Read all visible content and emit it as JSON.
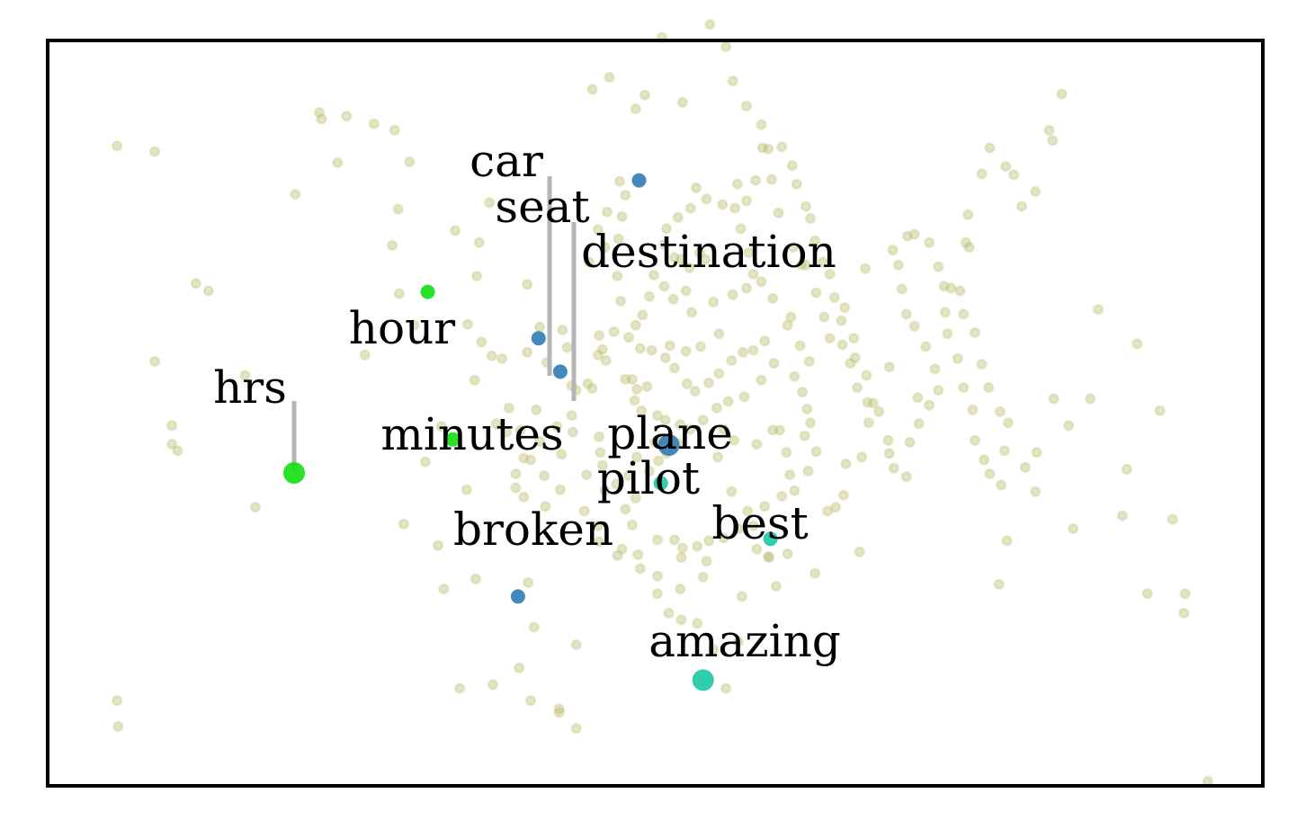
{
  "chart_data": {
    "type": "scatter",
    "title": "",
    "xlabel": "",
    "ylabel": "",
    "xlim": [
      0,
      100
    ],
    "ylim": [
      0,
      100
    ],
    "grid": false,
    "legend": "none",
    "axes_ticks": false,
    "colors": {
      "background_points": "#b9b866",
      "travel": "#2f7cb4",
      "time": "#12e012",
      "sentiment": "#19c9a4",
      "frame": "#000000",
      "leader_line": "#b5b5b5"
    },
    "background_points": [
      [
        4.5,
        70.6
      ],
      [
        4.6,
        8.1
      ],
      [
        7.8,
        70.0
      ],
      [
        7.8,
        47.4
      ],
      [
        9.3,
        40.5
      ],
      [
        9.3,
        38.5
      ],
      [
        9.8,
        37.8
      ],
      [
        11.4,
        55.8
      ],
      [
        12.5,
        55.0
      ],
      [
        15.7,
        45.9
      ],
      [
        16.6,
        31.7
      ],
      [
        20.1,
        65.4
      ],
      [
        22.2,
        74.2
      ],
      [
        22.4,
        73.5
      ],
      [
        24.6,
        73.8
      ],
      [
        23.8,
        68.8
      ],
      [
        26.2,
        48.1
      ],
      [
        30.5,
        51.3
      ],
      [
        27.0,
        73.0
      ],
      [
        28.8,
        72.3
      ],
      [
        30.1,
        68.9
      ],
      [
        29.1,
        63.8
      ],
      [
        28.6,
        59.9
      ],
      [
        29.2,
        54.7
      ],
      [
        33.1,
        22.9
      ],
      [
        32.6,
        27.6
      ],
      [
        35.9,
        24.0
      ],
      [
        34.1,
        61.5
      ],
      [
        31.5,
        36.6
      ],
      [
        32.9,
        40.4
      ],
      [
        35.2,
        51.4
      ],
      [
        36.0,
        56.6
      ],
      [
        36.2,
        60.2
      ],
      [
        37.1,
        64.5
      ],
      [
        36.4,
        49.5
      ],
      [
        35.8,
        45.4
      ],
      [
        37.7,
        40.7
      ],
      [
        38.6,
        39.8
      ],
      [
        38.2,
        47.7
      ],
      [
        39.8,
        40.0
      ],
      [
        40.4,
        48.4
      ],
      [
        41.5,
        51.1
      ],
      [
        40.4,
        55.7
      ],
      [
        40.7,
        36.8
      ],
      [
        39.4,
        33.8
      ],
      [
        40.5,
        23.6
      ],
      [
        41.0,
        18.8
      ],
      [
        39.7,
        14.4
      ],
      [
        40.7,
        10.9
      ],
      [
        43.2,
        9.6
      ],
      [
        43.2,
        10.0
      ],
      [
        44.7,
        7.9
      ],
      [
        44.7,
        16.9
      ],
      [
        40.1,
        32.8
      ],
      [
        39.4,
        35.3
      ],
      [
        41.5,
        38.8
      ],
      [
        40.1,
        37.0
      ],
      [
        41.9,
        35.1
      ],
      [
        43.4,
        37.4
      ],
      [
        43.0,
        40.4
      ],
      [
        41.2,
        42.2
      ],
      [
        42.1,
        47.3
      ],
      [
        43.9,
        48.9
      ],
      [
        44.3,
        41.6
      ],
      [
        44.4,
        39.8
      ],
      [
        43.3,
        33.6
      ],
      [
        42.0,
        31.8
      ],
      [
        45.4,
        31.3
      ],
      [
        46.8,
        37.6
      ],
      [
        46.7,
        39.3
      ],
      [
        46.1,
        44.5
      ],
      [
        45.7,
        45.0
      ],
      [
        47.3,
        47.5
      ],
      [
        46.6,
        48.1
      ],
      [
        47.0,
        48.7
      ],
      [
        48.0,
        50.6
      ],
      [
        46.7,
        50.2
      ],
      [
        48.6,
        53.9
      ],
      [
        48.3,
        56.6
      ],
      [
        47.2,
        59.7
      ],
      [
        48.4,
        60.6
      ],
      [
        48.7,
        63.0
      ],
      [
        49.0,
        65.3
      ],
      [
        48.5,
        66.8
      ],
      [
        47.4,
        63.5
      ],
      [
        46.6,
        61.6
      ],
      [
        45.8,
        58.1
      ],
      [
        43.5,
        50.8
      ],
      [
        44.7,
        44.3
      ],
      [
        49.0,
        45.5
      ],
      [
        49.6,
        45.5
      ],
      [
        50.9,
        44.7
      ],
      [
        50.0,
        44.4
      ],
      [
        49.8,
        43.2
      ],
      [
        50.4,
        42.1
      ],
      [
        51.8,
        41.6
      ],
      [
        52.5,
        41.1
      ],
      [
        53.8,
        40.6
      ],
      [
        52.3,
        39.1
      ],
      [
        51.6,
        38.7
      ],
      [
        50.0,
        37.1
      ],
      [
        49.3,
        35.1
      ],
      [
        48.2,
        34.2
      ],
      [
        47.2,
        33.5
      ],
      [
        46.7,
        28.0
      ],
      [
        46.6,
        29.7
      ],
      [
        49.6,
        29.8
      ],
      [
        51.8,
        28.2
      ],
      [
        53.3,
        28.2
      ],
      [
        53.9,
        26.3
      ],
      [
        54.0,
        27.3
      ],
      [
        55.3,
        27.5
      ],
      [
        56.1,
        25.9
      ],
      [
        55.8,
        24.2
      ],
      [
        53.8,
        22.9
      ],
      [
        51.8,
        22.4
      ],
      [
        52.8,
        20.3
      ],
      [
        53.9,
        19.6
      ],
      [
        55.3,
        19.2
      ],
      [
        56.7,
        16.4
      ],
      [
        57.8,
        12.2
      ],
      [
        58.9,
        17.2
      ],
      [
        59.2,
        22.1
      ],
      [
        60.5,
        27.2
      ],
      [
        61.2,
        31.8
      ],
      [
        59.7,
        31.3
      ],
      [
        58.3,
        33.4
      ],
      [
        57.1,
        37.1
      ],
      [
        58.5,
        38.9
      ],
      [
        60.5,
        38.5
      ],
      [
        61.9,
        40.0
      ],
      [
        62.5,
        40.0
      ],
      [
        63.1,
        37.6
      ],
      [
        63.4,
        35.2
      ],
      [
        63.8,
        33.5
      ],
      [
        65.0,
        35.6
      ],
      [
        65.7,
        37.7
      ],
      [
        65.2,
        40.8
      ],
      [
        64.9,
        42.3
      ],
      [
        64.5,
        44.1
      ],
      [
        63.8,
        45.8
      ],
      [
        64.3,
        49.1
      ],
      [
        63.5,
        52.2
      ],
      [
        61.9,
        54.2
      ],
      [
        60.9,
        56.0
      ],
      [
        60.2,
        56.8
      ],
      [
        59.8,
        59.1
      ],
      [
        59.1,
        61.7
      ],
      [
        58.6,
        63.9
      ],
      [
        57.5,
        64.3
      ],
      [
        56.1,
        64.9
      ],
      [
        55.2,
        66.1
      ],
      [
        54.7,
        63.9
      ],
      [
        53.6,
        62.9
      ],
      [
        52.6,
        61.7
      ],
      [
        52.4,
        60.0
      ],
      [
        53.3,
        58.6
      ],
      [
        53.9,
        58.4
      ],
      [
        54.6,
        57.5
      ],
      [
        54.3,
        55.0
      ],
      [
        53.2,
        54.1
      ],
      [
        52.4,
        55.5
      ],
      [
        51.5,
        56.7
      ],
      [
        51.1,
        54.4
      ],
      [
        50.5,
        52.4
      ],
      [
        49.9,
        51.3
      ],
      [
        49.3,
        50.0
      ],
      [
        50.3,
        48.8
      ],
      [
        51.3,
        48.6
      ],
      [
        52.5,
        47.8
      ],
      [
        53.3,
        46.7
      ],
      [
        54.4,
        45.0
      ],
      [
        55.1,
        44.2
      ],
      [
        56.3,
        45.1
      ],
      [
        57.2,
        46.1
      ],
      [
        58.3,
        47.5
      ],
      [
        59.3,
        48.4
      ],
      [
        60.2,
        48.6
      ],
      [
        61.2,
        49.6
      ],
      [
        62.0,
        47.2
      ],
      [
        60.9,
        45.4
      ],
      [
        59.4,
        43.6
      ],
      [
        58.0,
        43.1
      ],
      [
        57.0,
        42.4
      ],
      [
        55.8,
        41.1
      ],
      [
        54.7,
        40.1
      ],
      [
        53.6,
        38.6
      ],
      [
        52.6,
        37.5
      ],
      [
        51.9,
        36.7
      ],
      [
        51.1,
        35.6
      ],
      [
        49.9,
        32.7
      ],
      [
        49.0,
        31.5
      ],
      [
        48.7,
        27.2
      ],
      [
        48.3,
        26.5
      ],
      [
        50.3,
        25.1
      ],
      [
        51.8,
        24.3
      ],
      [
        56.3,
        28.1
      ],
      [
        57.6,
        28.4
      ],
      [
        58.9,
        29.4
      ],
      [
        60.2,
        29.7
      ],
      [
        61.5,
        26.4
      ],
      [
        62.2,
        23.2
      ],
      [
        63.2,
        26.7
      ],
      [
        66.7,
        31.3
      ],
      [
        67.4,
        31.7
      ],
      [
        68.1,
        33.0
      ],
      [
        68.3,
        36.4
      ],
      [
        69.7,
        37.1
      ],
      [
        70.3,
        40.8
      ],
      [
        70.7,
        42.9
      ],
      [
        70.1,
        45.9
      ],
      [
        69.1,
        47.8
      ],
      [
        69.0,
        49.9
      ],
      [
        67.9,
        51.8
      ],
      [
        67.3,
        54.3
      ],
      [
        66.9,
        56.8
      ],
      [
        66.3,
        58.1
      ],
      [
        65.6,
        60.4
      ],
      [
        65.2,
        62.8
      ],
      [
        64.8,
        64.1
      ],
      [
        64.0,
        66.5
      ],
      [
        63.6,
        68.5
      ],
      [
        62.7,
        70.5
      ],
      [
        61.5,
        70.3
      ],
      [
        60.9,
        72.9
      ],
      [
        59.6,
        74.9
      ],
      [
        58.4,
        77.6
      ],
      [
        57.8,
        81.3
      ],
      [
        56.4,
        83.7
      ],
      [
        55.8,
        87.3
      ],
      [
        54.0,
        75.3
      ],
      [
        52.2,
        82.3
      ],
      [
        50.7,
        76.1
      ],
      [
        49.9,
        74.6
      ],
      [
        47.6,
        78.0
      ],
      [
        46.1,
        76.7
      ],
      [
        58.8,
        66.5
      ],
      [
        59.6,
        64.7
      ],
      [
        60.4,
        66.9
      ],
      [
        61.0,
        70.4
      ],
      [
        61.8,
        67.0
      ],
      [
        62.4,
        63.4
      ],
      [
        63.7,
        59.7
      ],
      [
        64.4,
        57.8
      ],
      [
        65.7,
        54.8
      ],
      [
        66.4,
        52.2
      ],
      [
        66.9,
        49.9
      ],
      [
        68.0,
        49.2
      ],
      [
        68.7,
        47.2
      ],
      [
        69.3,
        44.6
      ],
      [
        70.2,
        43.0
      ],
      [
        71.2,
        42.0
      ],
      [
        72.0,
        38.9
      ],
      [
        72.1,
        37.5
      ],
      [
        72.5,
        35.9
      ],
      [
        73.6,
        35.0
      ],
      [
        73.9,
        38.7
      ],
      [
        74.7,
        40.7
      ],
      [
        75.6,
        42.7
      ],
      [
        76.4,
        44.3
      ],
      [
        76.1,
        46.6
      ],
      [
        75.3,
        49.0
      ],
      [
        74.3,
        51.2
      ],
      [
        73.6,
        52.5
      ],
      [
        73.2,
        55.2
      ],
      [
        72.9,
        57.8
      ],
      [
        72.4,
        59.4
      ],
      [
        73.7,
        60.9
      ],
      [
        74.3,
        61.1
      ],
      [
        75.6,
        60.2
      ],
      [
        76.4,
        57.6
      ],
      [
        76.9,
        55.5
      ],
      [
        77.5,
        55.3
      ],
      [
        77.0,
        52.7
      ],
      [
        77.2,
        50.4
      ],
      [
        78.1,
        47.7
      ],
      [
        78.6,
        44.6
      ],
      [
        79.4,
        42.2
      ],
      [
        79.6,
        38.9
      ],
      [
        80.4,
        36.8
      ],
      [
        80.9,
        35.3
      ],
      [
        81.9,
        34.1
      ],
      [
        82.2,
        37.8
      ],
      [
        82.5,
        40.8
      ],
      [
        81.8,
        42.0
      ],
      [
        80.8,
        44.6
      ],
      [
        80.2,
        47.1
      ],
      [
        79.6,
        50.5
      ],
      [
        78.6,
        52.5
      ],
      [
        78.3,
        55.0
      ],
      [
        79.1,
        59.7
      ],
      [
        78.8,
        60.2
      ],
      [
        79.0,
        63.2
      ],
      [
        80.2,
        67.6
      ],
      [
        80.9,
        70.4
      ],
      [
        82.3,
        68.4
      ],
      [
        83.0,
        67.5
      ],
      [
        83.7,
        64.1
      ],
      [
        84.9,
        65.7
      ],
      [
        86.4,
        71.2
      ],
      [
        86.1,
        72.3
      ],
      [
        87.2,
        76.2
      ],
      [
        86.5,
        43.4
      ],
      [
        87.8,
        40.5
      ],
      [
        84.0,
        36.0
      ],
      [
        84.9,
        33.4
      ],
      [
        82.4,
        28.1
      ],
      [
        81.7,
        23.4
      ],
      [
        85.0,
        37.6
      ],
      [
        88.2,
        29.4
      ],
      [
        89.7,
        43.4
      ],
      [
        90.4,
        53.0
      ],
      [
        93.8,
        49.3
      ],
      [
        95.8,
        42.1
      ],
      [
        92.9,
        35.8
      ],
      [
        92.5,
        30.8
      ],
      [
        96.9,
        30.4
      ],
      [
        94.7,
        22.4
      ],
      [
        98.0,
        22.4
      ],
      [
        97.9,
        20.3
      ],
      [
        100.0,
        2.2
      ],
      [
        4.5,
        10.9
      ],
      [
        37.4,
        12.6
      ],
      [
        34.5,
        12.2
      ],
      [
        58.4,
        54.6
      ],
      [
        57.2,
        50.4
      ],
      [
        55.6,
        49.0
      ],
      [
        54.3,
        48.5
      ],
      [
        52.9,
        49.1
      ],
      [
        45.6,
        35.2
      ],
      [
        44.3,
        44.8
      ],
      [
        37.3,
        48.0
      ],
      [
        35.1,
        33.6
      ],
      [
        29.6,
        29.9
      ],
      [
        38.8,
        42.4
      ],
      [
        64.7,
        39.4
      ],
      [
        57.6,
        40.1
      ],
      [
        47.0,
        36.2
      ],
      [
        50.1,
        26.6
      ],
      [
        61.6,
        26.3
      ],
      [
        65.6,
        24.6
      ],
      [
        69.5,
        26.9
      ],
      [
        62.7,
        32.9
      ],
      [
        74.6,
        43.5
      ],
      [
        72.1,
        46.8
      ],
      [
        65.1,
        47.4
      ],
      [
        68.2,
        53.2
      ],
      [
        70.0,
        57.4
      ],
      [
        64.8,
        57.8
      ],
      [
        56.0,
        58.4
      ],
      [
        55.5,
        59.1
      ],
      [
        54.8,
        52.7
      ],
      [
        56.7,
        53.8
      ],
      [
        59.6,
        55.3
      ],
      [
        63.2,
        51.3
      ]
    ],
    "labeled_points": [
      {
        "word": "car",
        "x": 41.4,
        "y": 49.9,
        "group": "travel",
        "size": "small"
      },
      {
        "word": "seat",
        "x": 43.3,
        "y": 46.3,
        "group": "travel",
        "size": "small"
      },
      {
        "word": "destination",
        "x": 50.2,
        "y": 66.9,
        "group": "travel",
        "size": "small"
      },
      {
        "word": "plane",
        "x": 52.8,
        "y": 38.4,
        "group": "travel",
        "size": "large"
      },
      {
        "word": "broken",
        "x": 39.6,
        "y": 22.1,
        "group": "travel",
        "size": "small"
      },
      {
        "word": "hour",
        "x": 31.7,
        "y": 54.9,
        "group": "time",
        "size": "small"
      },
      {
        "word": "hrs",
        "x": 20.0,
        "y": 35.4,
        "group": "time",
        "size": "large"
      },
      {
        "word": "minutes",
        "x": 33.9,
        "y": 39.0,
        "group": "time",
        "size": "small"
      },
      {
        "word": "pilot",
        "x": 52.1,
        "y": 34.3,
        "group": "sentiment",
        "size": "small"
      },
      {
        "word": "best",
        "x": 61.7,
        "y": 28.3,
        "group": "sentiment",
        "size": "small"
      },
      {
        "word": "amazing",
        "x": 55.8,
        "y": 13.1,
        "group": "sentiment",
        "size": "large"
      }
    ]
  }
}
